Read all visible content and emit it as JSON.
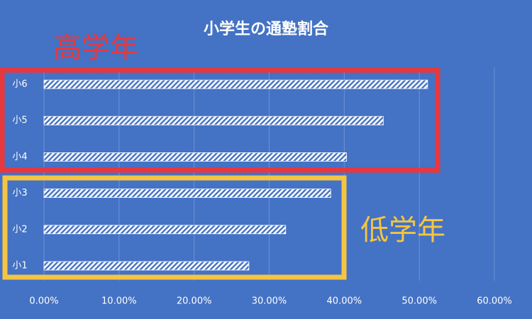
{
  "chart_data": {
    "type": "bar",
    "orientation": "horizontal",
    "title": "小学生の通塾割合",
    "categories": [
      "小6",
      "小5",
      "小4",
      "小3",
      "小2",
      "小1"
    ],
    "values": [
      51.1,
      45.2,
      40.3,
      38.2,
      32.2,
      27.3
    ],
    "color": "#ffffff",
    "background": "#4472c4",
    "xlim": [
      0,
      60
    ],
    "xticks": [
      {
        "value": 0,
        "label": "0.00%"
      },
      {
        "value": 10,
        "label": "10.00%"
      },
      {
        "value": 20,
        "label": "20.00%"
      },
      {
        "value": 30,
        "label": "30.00%"
      },
      {
        "value": 40,
        "label": "40.00%"
      },
      {
        "value": 50,
        "label": "50.00%"
      },
      {
        "value": 60,
        "label": "60.00%"
      }
    ],
    "grid": true,
    "annotations": [
      {
        "text": "高学年",
        "color": "#e8383d"
      },
      {
        "text": "低学年",
        "color": "#f5c542"
      }
    ]
  }
}
